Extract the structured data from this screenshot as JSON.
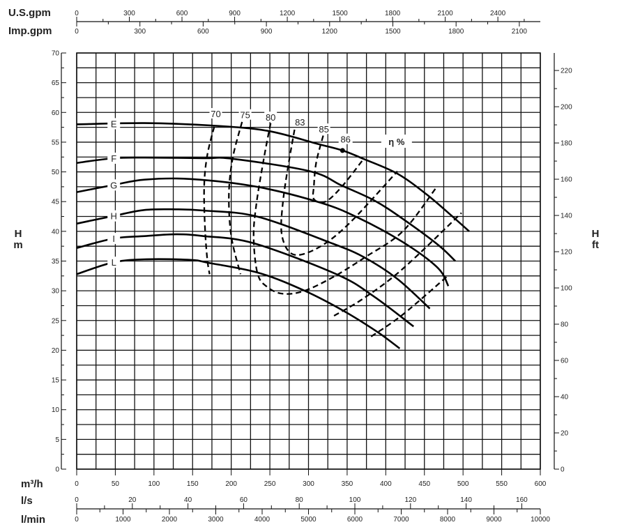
{
  "chart_data": {
    "type": "line",
    "title": "",
    "units": {
      "us_gpm": "U.S.gpm",
      "imp_gpm": "Imp.gpm",
      "m3h": "m³/h",
      "ls": "l/s",
      "lmin": "l/min",
      "h_left": [
        "H",
        "m"
      ],
      "h_right": [
        "H",
        "ft"
      ]
    },
    "xlabel": "m³/h",
    "ylabel": "H m",
    "xlim": [
      0,
      600
    ],
    "ylim": [
      0,
      70
    ],
    "grid": true,
    "x_ticks_m3h": [
      0,
      50,
      100,
      150,
      200,
      250,
      300,
      350,
      400,
      450,
      500,
      550,
      600
    ],
    "y_ticks_m": [
      0,
      5,
      10,
      15,
      20,
      25,
      30,
      35,
      40,
      45,
      50,
      55,
      60,
      65,
      70
    ],
    "y_ticks_ft": [
      0,
      20,
      40,
      60,
      80,
      100,
      120,
      140,
      160,
      180,
      200,
      220
    ],
    "us_gpm_ticks": [
      0,
      300,
      600,
      900,
      1200,
      1500,
      1800,
      2100,
      2400
    ],
    "imp_gpm_ticks": [
      0,
      300,
      600,
      900,
      1200,
      1500,
      1800,
      2100
    ],
    "ls_ticks": [
      0,
      20,
      40,
      60,
      80,
      100,
      120,
      140,
      160
    ],
    "lmin_ticks": [
      0,
      1000,
      2000,
      3000,
      4000,
      5000,
      6000,
      7000,
      8000,
      9000,
      10000
    ],
    "series": [
      {
        "name": "E",
        "points": [
          [
            0,
            58.0
          ],
          [
            88,
            58.2
          ],
          [
            174,
            57.8
          ],
          [
            247,
            56.9
          ],
          [
            312,
            54.7
          ],
          [
            344,
            53.6
          ],
          [
            371,
            52.2
          ],
          [
            415,
            49.7
          ],
          [
            453,
            46.2
          ],
          [
            488,
            42.3
          ],
          [
            508,
            40.0
          ]
        ]
      },
      {
        "name": "F",
        "points": [
          [
            0,
            51.5
          ],
          [
            48,
            52.3
          ],
          [
            88,
            52.4
          ],
          [
            164,
            52.3
          ],
          [
            202,
            52.2
          ],
          [
            302,
            50.1
          ],
          [
            343,
            47.7
          ],
          [
            385,
            45.2
          ],
          [
            422,
            42.1
          ],
          [
            467,
            37.8
          ],
          [
            490,
            35.0
          ]
        ]
      },
      {
        "name": "G",
        "points": [
          [
            0,
            46.6
          ],
          [
            48,
            47.8
          ],
          [
            88,
            48.7
          ],
          [
            147,
            48.8
          ],
          [
            233,
            47.5
          ],
          [
            316,
            44.8
          ],
          [
            364,
            42.3
          ],
          [
            422,
            38.2
          ],
          [
            467,
            33.9
          ],
          [
            481,
            30.8
          ]
        ]
      },
      {
        "name": "H",
        "points": [
          [
            0,
            41.3
          ],
          [
            48,
            42.6
          ],
          [
            88,
            43.6
          ],
          [
            129,
            43.7
          ],
          [
            164,
            43.5
          ],
          [
            233,
            42.5
          ],
          [
            326,
            38.2
          ],
          [
            371,
            35.7
          ],
          [
            415,
            32.0
          ],
          [
            457,
            27.0
          ]
        ]
      },
      {
        "name": "I",
        "points": [
          [
            0,
            37.2
          ],
          [
            48,
            38.8
          ],
          [
            88,
            39.2
          ],
          [
            129,
            39.5
          ],
          [
            164,
            39.2
          ],
          [
            229,
            38.0
          ],
          [
            336,
            32.8
          ],
          [
            384,
            29.1
          ],
          [
            436,
            24.0
          ]
        ]
      },
      {
        "name": "L",
        "points": [
          [
            0,
            32.8
          ],
          [
            48,
            34.8
          ],
          [
            91,
            35.3
          ],
          [
            147,
            35.2
          ],
          [
            171,
            34.7
          ],
          [
            236,
            33.0
          ],
          [
            295,
            30.0
          ],
          [
            347,
            26.5
          ],
          [
            390,
            23.0
          ],
          [
            418,
            20.3
          ]
        ]
      }
    ],
    "curve_label_q": 48,
    "efficiency_label": "η %",
    "efficiency_label_pos": [
      414,
      55.1
    ],
    "best_efficiency_point": {
      "label": "86",
      "q": 344,
      "h": 53.6,
      "label_pos": [
        348,
        55.5
      ]
    },
    "efficiency_lines": [
      {
        "label": "70",
        "label_pos": [
          180,
          59.8
        ],
        "branches": [
          [
            [
              178,
              57.6
            ],
            [
              169,
              52.8
            ],
            [
              165,
              47.7
            ],
            [
              166,
              40.7
            ],
            [
              169,
              35.3
            ],
            [
              172,
              32.8
            ]
          ],
          [
            [
              381,
              22.3
            ],
            [
              422,
              26.0
            ],
            [
              481,
              32.6
            ]
          ]
        ]
      },
      {
        "label": "75",
        "label_pos": [
          218,
          59.6
        ],
        "branches": [
          [
            [
              214,
              58.4
            ],
            [
              202,
              52.4
            ],
            [
              197,
              46.2
            ],
            [
              200,
              39.2
            ],
            [
              212,
              32.8
            ]
          ],
          [
            [
              333,
              25.8
            ],
            [
              371,
              28.7
            ],
            [
              422,
              33.7
            ],
            [
              498,
              43.1
            ]
          ]
        ]
      },
      {
        "label": "80",
        "label_pos": [
          251,
          59.2
        ],
        "branches": [
          [
            [
              251,
              58.2
            ],
            [
              243,
              52.8
            ],
            [
              233,
              45.0
            ],
            [
              229,
              39.2
            ],
            [
              234,
              32.9
            ],
            [
              247,
              30.6
            ],
            [
              267,
              29.5
            ],
            [
              295,
              30.0
            ],
            [
              333,
              32.4
            ],
            [
              374,
              35.7
            ],
            [
              422,
              40.0
            ],
            [
              465,
              47.3
            ]
          ]
        ]
      },
      {
        "label": "83",
        "label_pos": [
          289,
          58.4
        ],
        "branches": [
          [
            [
              284,
              58.6
            ],
            [
              274,
              51.2
            ],
            [
              267,
              45.0
            ],
            [
              265,
              39.9
            ],
            [
              274,
              36.7
            ],
            [
              291,
              36.1
            ],
            [
              322,
              38.0
            ],
            [
              357,
              41.9
            ],
            [
              415,
              50.1
            ]
          ]
        ]
      },
      {
        "label": "85",
        "label_pos": [
          320,
          57.2
        ],
        "branches": [
          [
            [
              319,
              56.1
            ],
            [
              310,
              51.6
            ],
            [
              307,
              47.7
            ],
            [
              307,
              45.4
            ],
            [
              322,
              45.0
            ],
            [
              343,
              47.5
            ],
            [
              372,
              52.3
            ]
          ]
        ]
      }
    ]
  }
}
